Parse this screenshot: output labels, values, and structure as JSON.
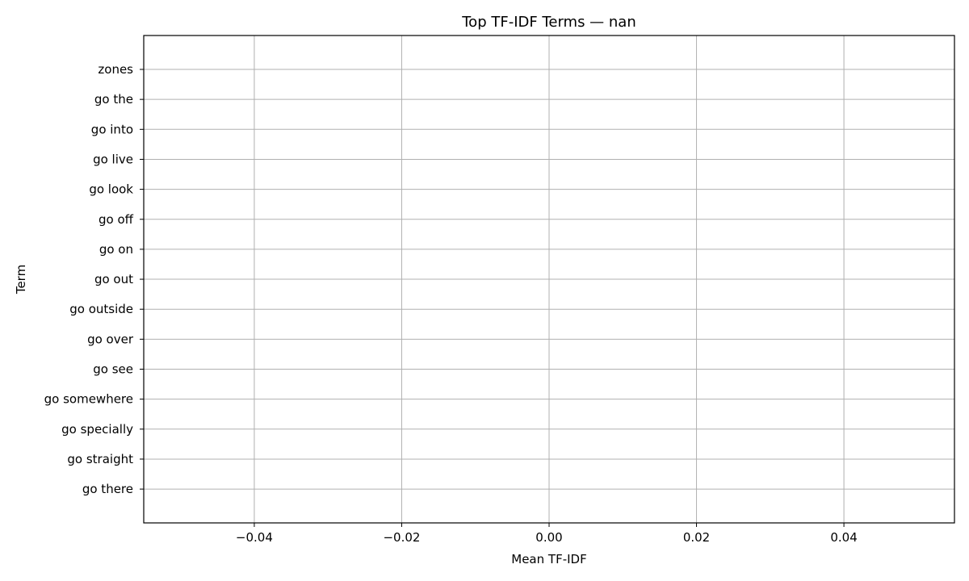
{
  "chart_data": {
    "type": "bar",
    "orientation": "horizontal",
    "title": "Top TF-IDF Terms — nan",
    "xlabel": "Mean TF-IDF",
    "ylabel": "Term",
    "categories": [
      "zones",
      "go the",
      "go into",
      "go live",
      "go look",
      "go off",
      "go on",
      "go out",
      "go outside",
      "go over",
      "go see",
      "go somewhere",
      "go specially",
      "go straight",
      "go there"
    ],
    "values": [
      null,
      null,
      null,
      null,
      null,
      null,
      null,
      null,
      null,
      null,
      null,
      null,
      null,
      null,
      null
    ],
    "xlim": [
      -0.055,
      0.055
    ],
    "xticks": [
      -0.04,
      -0.02,
      0.0,
      0.02,
      0.04
    ],
    "xtick_labels": [
      "−0.04",
      "−0.02",
      "0.00",
      "0.02",
      "0.04"
    ],
    "grid": true
  }
}
